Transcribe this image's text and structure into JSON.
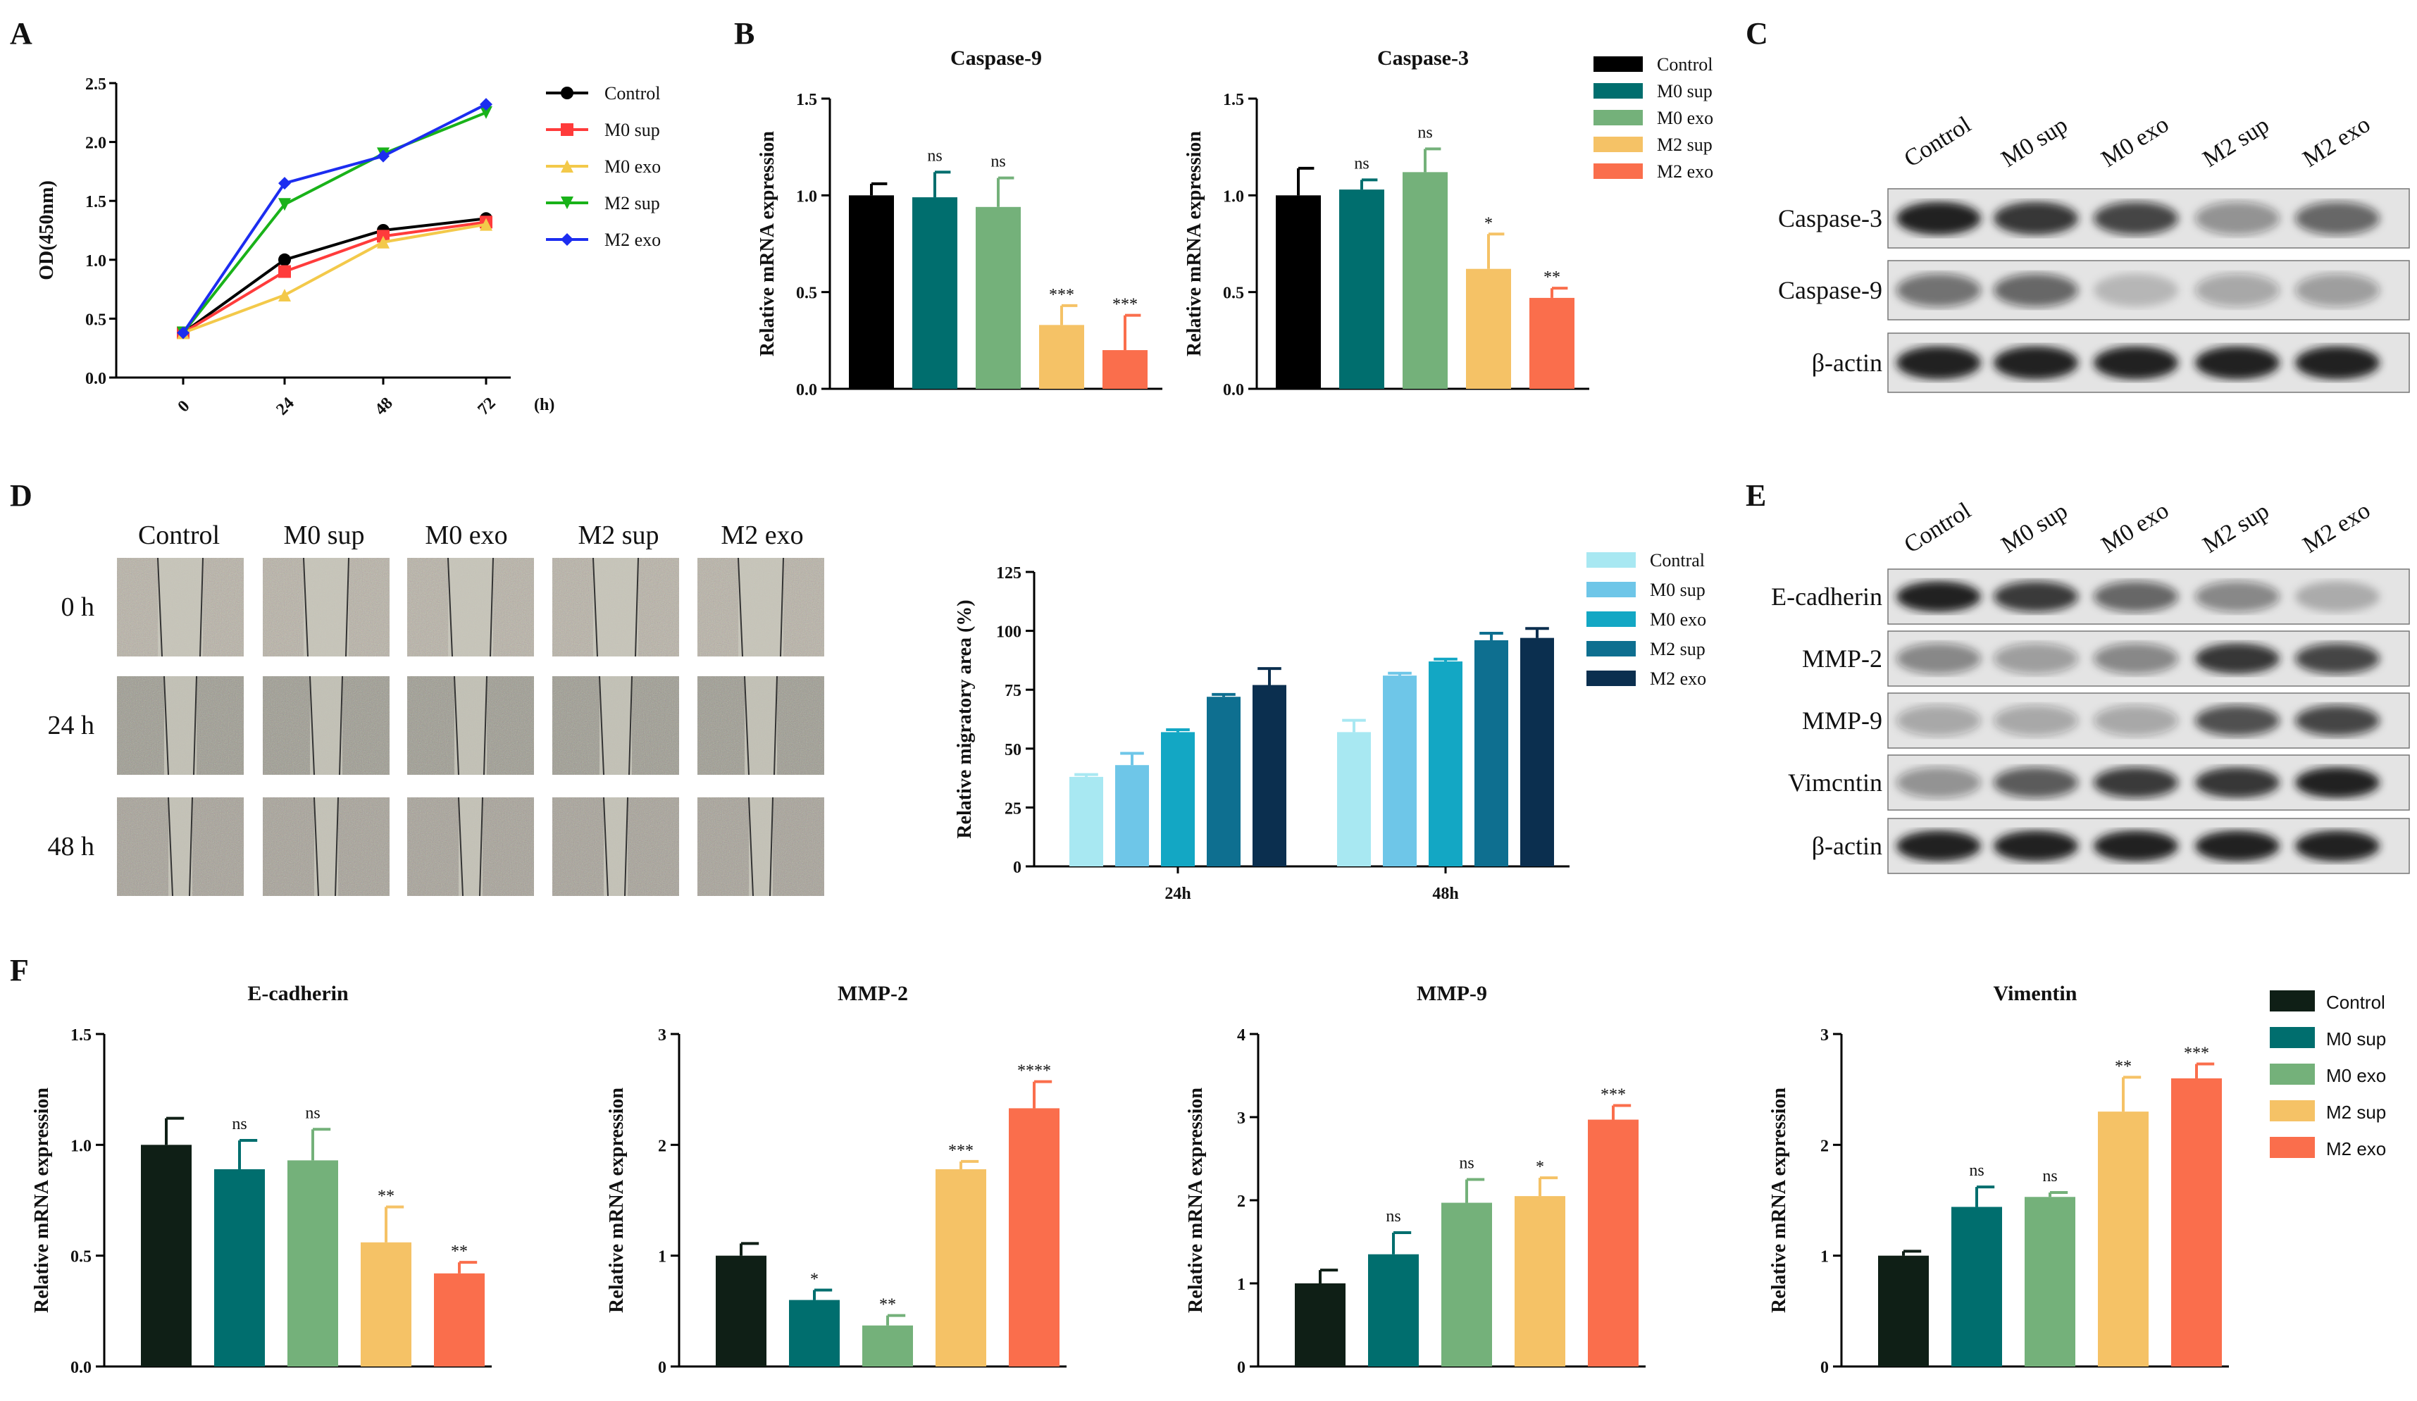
{
  "panels": {
    "A": "A",
    "B": "B",
    "C": "C",
    "D": "D",
    "E": "E",
    "F": "F"
  },
  "colors": {
    "control": "#000000",
    "m0sup": "#006E6E",
    "m0exo": "#74B17A",
    "m2sup": "#F5C266",
    "m2exo": "#FA6E4C",
    "controlF": "#0F1F16",
    "lineControl": "#000000",
    "lineM0sup": "#FF3B3B",
    "lineM0exo": "#F3C94A",
    "lineM2sup": "#19B219",
    "lineM2exo": "#1C2DF0",
    "migControl": "#A8E8F2",
    "migM0sup": "#6EC6E8",
    "migM0exo": "#13A7C4",
    "migM2sup": "#0E6F90",
    "migM2exo": "#0B2F4F"
  },
  "chart_data": [
    {
      "id": "A",
      "type": "line",
      "title": "",
      "xlabel": "(h)",
      "ylabel": "OD(450nm)",
      "x": [
        0,
        24,
        48,
        72
      ],
      "ylim": [
        0,
        2.5
      ],
      "yticks": [
        "0.0",
        "0.5",
        "1.0",
        "1.5",
        "2.0",
        "2.5"
      ],
      "series": [
        {
          "name": "Control",
          "values": [
            0.38,
            1.0,
            1.25,
            1.35
          ],
          "marker": "circle"
        },
        {
          "name": "M0 sup",
          "values": [
            0.38,
            0.9,
            1.2,
            1.32
          ],
          "marker": "square"
        },
        {
          "name": "M0 exo",
          "values": [
            0.38,
            0.7,
            1.15,
            1.3
          ],
          "marker": "triangle-up"
        },
        {
          "name": "M2 sup",
          "values": [
            0.38,
            1.47,
            1.9,
            2.25
          ],
          "marker": "triangle-down"
        },
        {
          "name": "M2 exo",
          "values": [
            0.38,
            1.65,
            1.88,
            2.32
          ],
          "marker": "diamond"
        }
      ]
    },
    {
      "id": "B1",
      "type": "bar",
      "title": "Caspase-9",
      "ylabel": "Relative mRNA expression",
      "categories": [
        "Control",
        "M0 sup",
        "M0 exo",
        "M2 sup",
        "M2 exo"
      ],
      "values": [
        1.0,
        0.99,
        0.94,
        0.33,
        0.2
      ],
      "errors": [
        0.06,
        0.13,
        0.15,
        0.1,
        0.18
      ],
      "sig": [
        "",
        "ns",
        "ns",
        "***",
        "***"
      ],
      "ylim": [
        0,
        1.5
      ],
      "yticks": [
        "0.0",
        "0.5",
        "1.0",
        "1.5"
      ]
    },
    {
      "id": "B2",
      "type": "bar",
      "title": "Caspase-3",
      "ylabel": "Relative mRNA expression",
      "categories": [
        "Control",
        "M0 sup",
        "M0 exo",
        "M2 sup",
        "M2 exo"
      ],
      "values": [
        1.0,
        1.03,
        1.12,
        0.62,
        0.47
      ],
      "errors": [
        0.14,
        0.05,
        0.12,
        0.18,
        0.05
      ],
      "sig": [
        "",
        "ns",
        "ns",
        "*",
        "**"
      ],
      "ylim": [
        0,
        1.5
      ],
      "yticks": [
        "0.0",
        "0.5",
        "1.0",
        "1.5"
      ]
    },
    {
      "id": "D",
      "type": "bar",
      "title": "",
      "ylabel": "Relative migratory area (%)",
      "categories": [
        "24h",
        "48h"
      ],
      "series": [
        {
          "name": "Contral",
          "values": [
            38,
            57
          ],
          "errors": [
            1,
            5
          ]
        },
        {
          "name": "M0 sup",
          "values": [
            43,
            81
          ],
          "errors": [
            5,
            1
          ]
        },
        {
          "name": "M0 exo",
          "values": [
            57,
            87
          ],
          "errors": [
            1,
            1
          ]
        },
        {
          "name": "M2 sup",
          "values": [
            72,
            96
          ],
          "errors": [
            1,
            3
          ]
        },
        {
          "name": "M2 exo",
          "values": [
            77,
            97
          ],
          "errors": [
            7,
            4
          ]
        }
      ],
      "ylim": [
        0,
        125
      ],
      "yticks": [
        "0",
        "25",
        "50",
        "75",
        "100",
        "125"
      ]
    },
    {
      "id": "F1",
      "type": "bar",
      "title": "E-cadherin",
      "ylabel": "Relative mRNA expression",
      "categories": [
        "Control",
        "M0 sup",
        "M0 exo",
        "M2 sup",
        "M2 exo"
      ],
      "values": [
        1.0,
        0.89,
        0.93,
        0.56,
        0.42
      ],
      "errors": [
        0.12,
        0.13,
        0.14,
        0.16,
        0.05
      ],
      "sig": [
        "",
        "ns",
        "ns",
        "**",
        "**"
      ],
      "ylim": [
        0,
        1.5
      ],
      "yticks": [
        "0.0",
        "0.5",
        "1.0",
        "1.5"
      ]
    },
    {
      "id": "F2",
      "type": "bar",
      "title": "MMP-2",
      "ylabel": "Relative mRNA expression",
      "categories": [
        "Control",
        "M0 sup",
        "M0 exo",
        "M2 sup",
        "M2 exo"
      ],
      "values": [
        1.0,
        0.6,
        0.37,
        1.78,
        2.33
      ],
      "errors": [
        0.11,
        0.09,
        0.09,
        0.07,
        0.24
      ],
      "sig": [
        "",
        "*",
        "**",
        "***",
        "****"
      ],
      "ylim": [
        0,
        3
      ],
      "yticks": [
        "0",
        "1",
        "2",
        "3"
      ]
    },
    {
      "id": "F3",
      "type": "bar",
      "title": "MMP-9",
      "ylabel": "Relative mRNA expression",
      "categories": [
        "Control",
        "M0 sup",
        "M0 exo",
        "M2 sup",
        "M2 exo"
      ],
      "values": [
        1.0,
        1.35,
        1.97,
        2.05,
        2.97
      ],
      "errors": [
        0.16,
        0.26,
        0.28,
        0.22,
        0.17
      ],
      "sig": [
        "",
        "ns",
        "ns",
        "*",
        "***"
      ],
      "ylim": [
        0,
        4
      ],
      "yticks": [
        "0",
        "1",
        "2",
        "3",
        "4"
      ]
    },
    {
      "id": "F4",
      "type": "bar",
      "title": "Vimentin",
      "ylabel": "Relative mRNA expression",
      "categories": [
        "Control",
        "M0 sup",
        "M0 exo",
        "M2 sup",
        "M2 exo"
      ],
      "values": [
        1.0,
        1.44,
        1.53,
        2.3,
        2.6
      ],
      "errors": [
        0.04,
        0.18,
        0.04,
        0.31,
        0.13
      ],
      "sig": [
        "",
        "ns",
        "ns",
        "**",
        "***"
      ],
      "ylim": [
        0,
        3
      ],
      "yticks": [
        "0",
        "1",
        "2",
        "3"
      ]
    }
  ],
  "legendB": [
    "Control",
    "M0 sup",
    "M0 exo",
    "M2 sup",
    "M2 exo"
  ],
  "legendF": [
    "Control",
    "M0 sup",
    "M0 exo",
    "M2 sup",
    "M2 exo"
  ],
  "blotC": {
    "lanes": [
      "Control",
      "M0 sup",
      "M0 exo",
      "M2 sup",
      "M2 exo"
    ],
    "rows": [
      "Caspase-3",
      "Caspase-9",
      "β-actin"
    ]
  },
  "blotE": {
    "lanes": [
      "Control",
      "M0 sup",
      "M0 exo",
      "M2 sup",
      "M2 exo"
    ],
    "rows": [
      "E-cadherin",
      "MMP-2",
      "MMP-9",
      "Vimcntin",
      "β-actin"
    ]
  },
  "scratch": {
    "columns": [
      "Control",
      "M0 sup",
      "M0 exo",
      "M2 sup",
      "M2 exo"
    ],
    "rows": [
      "0 h",
      "24 h",
      "48 h"
    ]
  }
}
